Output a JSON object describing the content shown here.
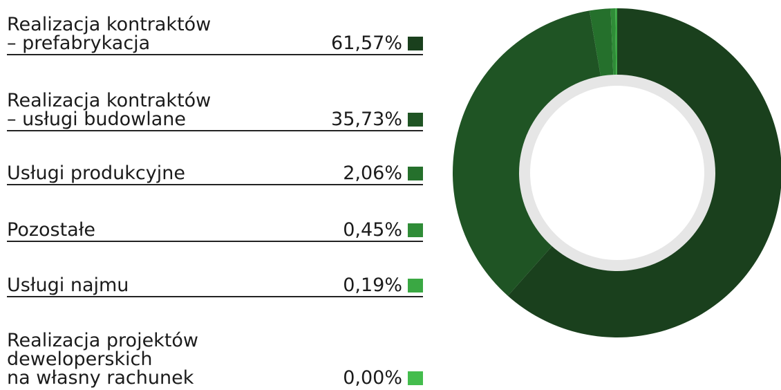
{
  "chart_data": {
    "type": "donut",
    "categories": [
      "Realizacja kontraktów\n– prefabrykacja",
      "Realizacja kontraktów\n– usługi budowlane",
      "Usługi produkcyjne",
      "Pozostałe",
      "Usługi najmu",
      "Realizacja projektów\ndeweloperskich\nna własny rachunek"
    ],
    "values": [
      61.57,
      35.73,
      2.06,
      0.45,
      0.19,
      0.0
    ],
    "value_labels": [
      "61,57%",
      "35,73%",
      "2,06%",
      "0,45%",
      "0,19%",
      "0,00%"
    ],
    "colors": [
      "#1a401d",
      "#1f5424",
      "#25702c",
      "#2f8c37",
      "#3aa843",
      "#44bd4d"
    ]
  }
}
